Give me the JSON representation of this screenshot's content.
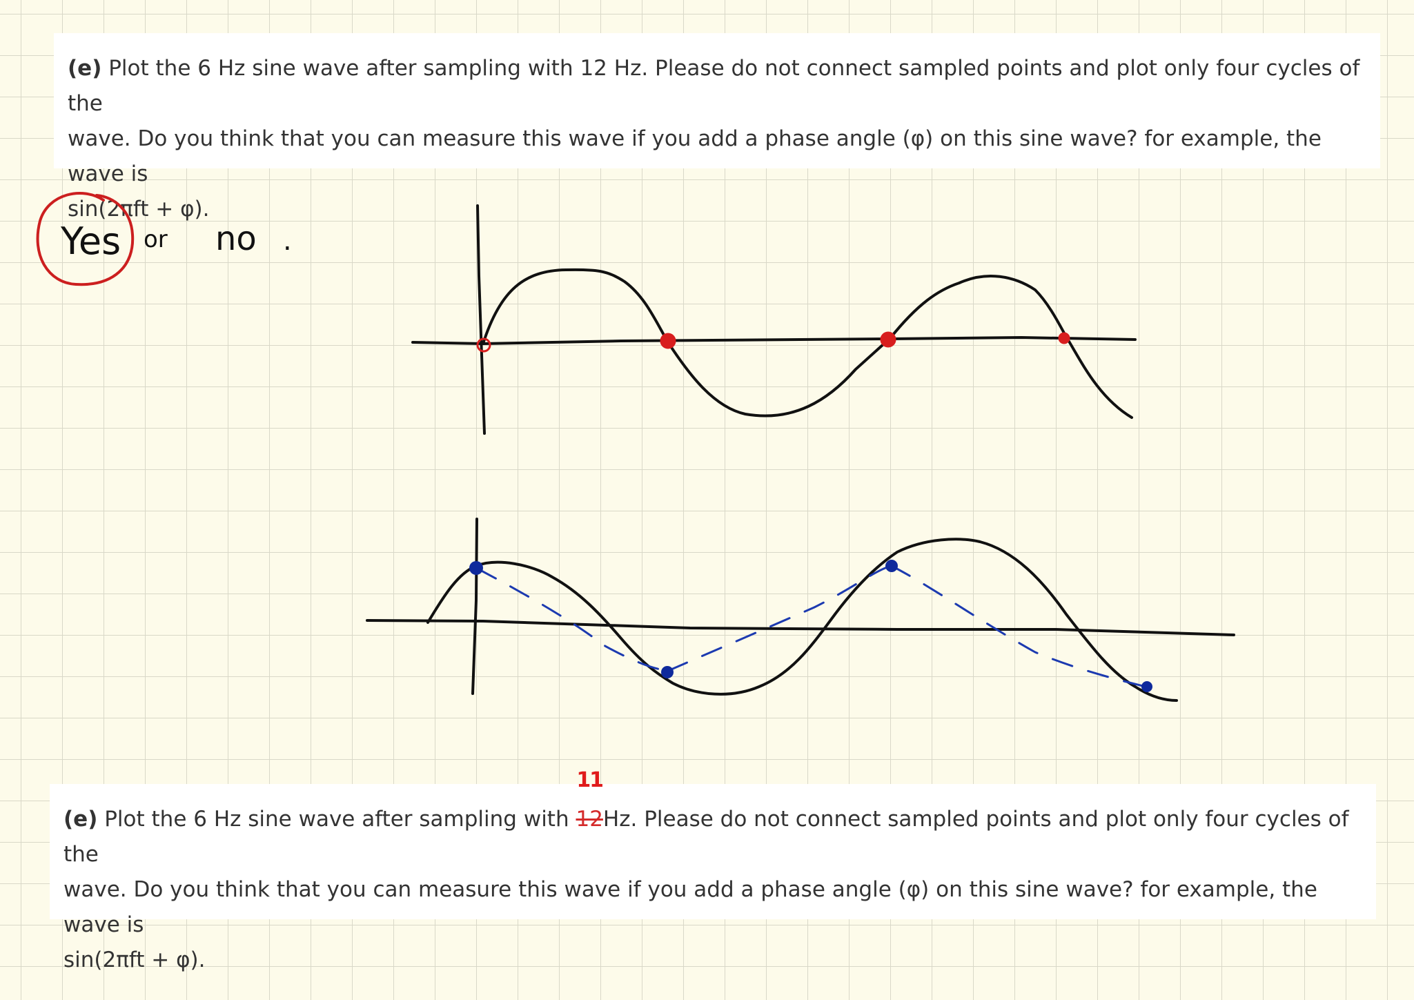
{
  "question_top": {
    "label": "(e)",
    "line1": "Plot the 6 Hz sine wave after sampling with 12 Hz. Please do not connect sampled points and plot only four cycles of the",
    "line2": "wave. Do you think that you can measure this wave if you add a phase angle (φ) on this sine wave? for example, the wave is",
    "line3": "sin(2πft + φ)."
  },
  "answer": {
    "yes": "Yes",
    "or": "or",
    "no": "no",
    "dot": ".",
    "circle_color": "#cc1f1f"
  },
  "question_bottom": {
    "label": "(e)",
    "line1_before": "Plot the 6 Hz sine wave after sampling with ",
    "struck_value": "12",
    "correction": "11",
    "line1_after": "Hz. Please do not connect sampled points and plot only four cycles of the",
    "line2": "wave. Do you think that you can measure this wave if you add a phase angle (φ) on this sine wave? for example, the wave is",
    "line3": "sin(2πft + φ)."
  },
  "colors": {
    "ink": "#111111",
    "red_samples": "#d81e1e",
    "blue_samples": "#0f2a9c",
    "correction": "#e01b1b"
  }
}
